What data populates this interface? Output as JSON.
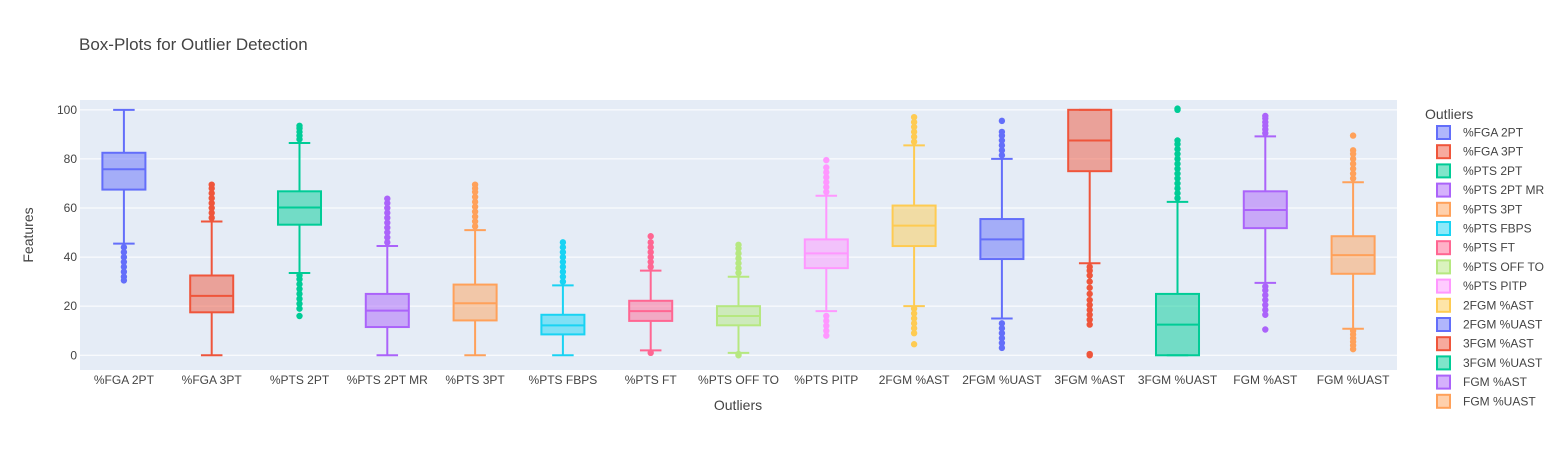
{
  "chart_data": {
    "type": "box",
    "title": "Box-Plots for Outlier Detection",
    "xlabel": "Outliers",
    "ylabel": "Features",
    "ylim": [
      -6,
      104
    ],
    "yticks": [
      0,
      20,
      40,
      60,
      80,
      100
    ],
    "grid": true,
    "legend_title": "Outliers",
    "legend_position": "right",
    "series": [
      {
        "name": "%FGA 2PT",
        "color": "#636efa",
        "lower_fence": 45.5,
        "q1": 67.5,
        "median": 75.8,
        "q3": 82.5,
        "upper_fence": 100,
        "outliers_low": [
          30.5,
          32,
          34,
          36,
          38,
          40,
          42,
          44
        ],
        "outliers_high": []
      },
      {
        "name": "%FGA 3PT",
        "color": "#ef553b",
        "lower_fence": 0,
        "q1": 17.5,
        "median": 24.2,
        "q3": 32.5,
        "upper_fence": 54.5,
        "outliers_low": [],
        "outliers_high": [
          56,
          58,
          60,
          62,
          64,
          66,
          68,
          69.5
        ]
      },
      {
        "name": "%PTS 2PT",
        "color": "#00cc96",
        "lower_fence": 33.5,
        "q1": 53.2,
        "median": 60.2,
        "q3": 66.8,
        "upper_fence": 86.5,
        "outliers_low": [
          16,
          19,
          21,
          23,
          25,
          27,
          29,
          31,
          32.5
        ],
        "outliers_high": [
          88,
          89.5,
          91,
          92.5,
          93.5
        ]
      },
      {
        "name": "%PTS 2PT MR",
        "color": "#ab63fa",
        "lower_fence": 0,
        "q1": 11.5,
        "median": 18.2,
        "q3": 25,
        "upper_fence": 44.5,
        "outliers_low": [],
        "outliers_high": [
          46,
          48,
          50,
          52,
          54,
          56,
          58,
          60,
          62,
          63.8
        ]
      },
      {
        "name": "%PTS 3PT",
        "color": "#ffa15a",
        "lower_fence": 0,
        "q1": 14.2,
        "median": 21.2,
        "q3": 28.8,
        "upper_fence": 51,
        "outliers_low": [],
        "outliers_high": [
          52.5,
          54.5,
          56.5,
          58.5,
          60.5,
          62.5,
          64.5,
          66.5,
          68,
          69.5
        ]
      },
      {
        "name": "%PTS FBPS",
        "color": "#19d3f3",
        "lower_fence": 0,
        "q1": 8.5,
        "median": 12.2,
        "q3": 16.5,
        "upper_fence": 28.5,
        "outliers_low": [],
        "outliers_high": [
          30,
          32,
          34,
          36,
          38,
          40,
          42,
          44,
          46
        ]
      },
      {
        "name": "%PTS FT",
        "color": "#ff6692",
        "lower_fence": 2,
        "q1": 14,
        "median": 18,
        "q3": 22.2,
        "upper_fence": 34.5,
        "outliers_low": [
          1
        ],
        "outliers_high": [
          36,
          38,
          40,
          42,
          44,
          46,
          48.5
        ]
      },
      {
        "name": "%PTS OFF TO",
        "color": "#b6e880",
        "lower_fence": 1,
        "q1": 12.2,
        "median": 16,
        "q3": 20,
        "upper_fence": 32,
        "outliers_low": [
          0,
          0.5
        ],
        "outliers_high": [
          33.5,
          35.5,
          37.5,
          39.5,
          41.5,
          43.5,
          45
        ]
      },
      {
        "name": "%PTS PITP",
        "color": "#ff97ff",
        "lower_fence": 18,
        "q1": 35.5,
        "median": 41.5,
        "q3": 47.2,
        "upper_fence": 65,
        "outliers_low": [
          8,
          10,
          12,
          14,
          16
        ],
        "outliers_high": [
          66.5,
          68.5,
          70.5,
          72.5,
          74.5,
          76.5,
          79.5
        ]
      },
      {
        "name": "2FGM %AST",
        "color": "#fecb52",
        "lower_fence": 20,
        "q1": 44.5,
        "median": 52.8,
        "q3": 61,
        "upper_fence": 85.5,
        "outliers_low": [
          4.5,
          9,
          11,
          13,
          15,
          17,
          19
        ],
        "outliers_high": [
          87,
          89,
          91,
          93,
          95,
          97
        ]
      },
      {
        "name": "2FGM %UAST",
        "color": "#636efa",
        "lower_fence": 15,
        "q1": 39.2,
        "median": 47.2,
        "q3": 55.5,
        "upper_fence": 80,
        "outliers_low": [
          3,
          5,
          7,
          9,
          11,
          13
        ],
        "outliers_high": [
          81.5,
          83.5,
          85.5,
          87.5,
          89.5,
          91,
          95.5
        ]
      },
      {
        "name": "3FGM %AST",
        "color": "#ef553b",
        "lower_fence": 37.5,
        "q1": 75,
        "median": 87.5,
        "q3": 100,
        "upper_fence": 100,
        "outliers_low": [
          0,
          0.5,
          12.5,
          14.5,
          16.5,
          18.5,
          20.5,
          22.5,
          25,
          27.5,
          30,
          32.5,
          34.5,
          36
        ],
        "outliers_high": []
      },
      {
        "name": "3FGM %UAST",
        "color": "#00cc96",
        "lower_fence": 0,
        "q1": 0,
        "median": 12.5,
        "q3": 25,
        "upper_fence": 62.5,
        "outliers_low": [],
        "outliers_high": [
          64,
          66,
          68,
          70,
          72,
          74,
          76,
          78,
          80,
          82,
          84,
          86,
          87.5,
          100,
          100.5
        ]
      },
      {
        "name": "FGM %AST",
        "color": "#ab63fa",
        "lower_fence": 29.5,
        "q1": 51.8,
        "median": 59.2,
        "q3": 66.8,
        "upper_fence": 89.2,
        "outliers_low": [
          10.5,
          16.5,
          18.5,
          20.5,
          22.5,
          24.5,
          26.5,
          28
        ],
        "outliers_high": [
          90.5,
          92,
          93.5,
          95,
          96.5,
          97.5
        ]
      },
      {
        "name": "FGM %UAST",
        "color": "#ffa15a",
        "lower_fence": 10.8,
        "q1": 33.2,
        "median": 40.8,
        "q3": 48.5,
        "upper_fence": 70.5,
        "outliers_low": [
          2.5,
          4,
          5.5,
          7,
          8.5,
          10
        ],
        "outliers_high": [
          72,
          74,
          76,
          78,
          80,
          82,
          83.5,
          89.5
        ]
      }
    ]
  }
}
